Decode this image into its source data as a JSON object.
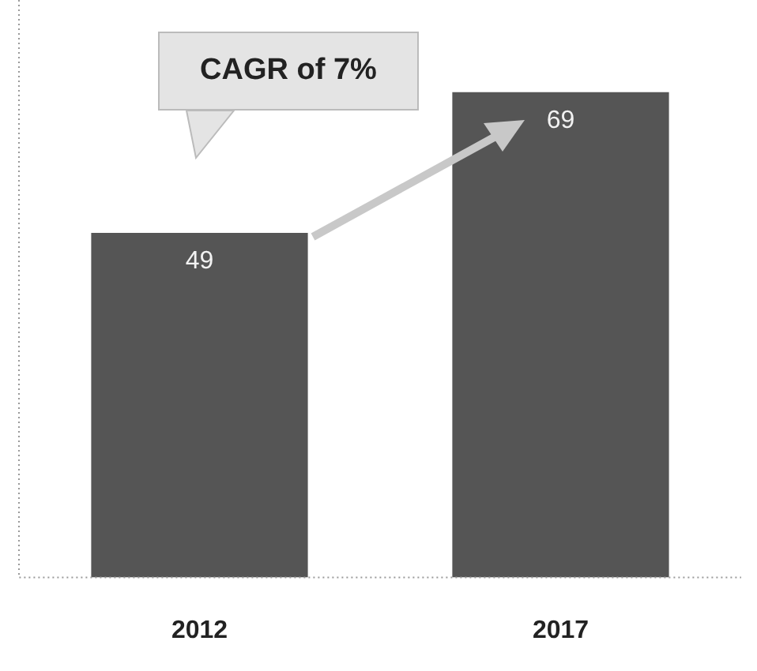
{
  "chart_data": {
    "type": "bar",
    "categories": [
      "2012",
      "2017"
    ],
    "values": [
      49,
      69
    ],
    "color": "#555555",
    "data_labels": true,
    "grid": false,
    "legend": false,
    "tick_labels": "x",
    "annotations": [
      "CAGR of 7%"
    ]
  }
}
